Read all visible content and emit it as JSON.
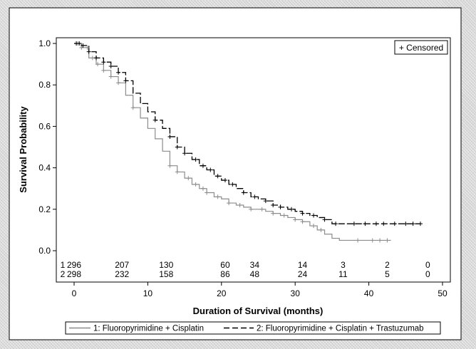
{
  "colors": {
    "panel_background": "#ffffff",
    "series1": "#8c8c8c",
    "series2": "#000000",
    "frame": "#000000"
  },
  "chart_data": {
    "type": "line",
    "subtype": "kaplan-meier survival curve with censoring marks",
    "title": "",
    "xlabel": "Duration of Survival (months)",
    "ylabel": "Survival Probability",
    "xlim": [
      -2,
      50
    ],
    "ylim": [
      0.0,
      1.0
    ],
    "x_ticks": [
      0,
      10,
      20,
      30,
      40,
      50
    ],
    "y_ticks": [
      0.0,
      0.2,
      0.4,
      0.6,
      0.8,
      1.0
    ],
    "x_tick_labels": [
      "0",
      "10",
      "20",
      "30",
      "40",
      "50"
    ],
    "y_tick_labels": [
      "0.0",
      "0.2",
      "0.4",
      "0.6",
      "0.8",
      "1.0"
    ],
    "grid": false,
    "censor_legend": "+ Censored",
    "censor_legend_position": "top-right",
    "legend_position": "bottom",
    "series": [
      {
        "name": "1: Fluoropyrimidine + Cisplatin",
        "style": "solid gray",
        "x": [
          0,
          1,
          2,
          3,
          4,
          5,
          6,
          7,
          8,
          9,
          10,
          11,
          12,
          13,
          14,
          15,
          16,
          17,
          18,
          19,
          20,
          21,
          22,
          23,
          24,
          25,
          26,
          27,
          28,
          29,
          30,
          31,
          32,
          33,
          34,
          35,
          36,
          37,
          38,
          39,
          40,
          41,
          42,
          43
        ],
        "y": [
          1.0,
          0.98,
          0.93,
          0.9,
          0.87,
          0.84,
          0.81,
          0.75,
          0.69,
          0.64,
          0.59,
          0.54,
          0.48,
          0.41,
          0.38,
          0.35,
          0.32,
          0.3,
          0.28,
          0.26,
          0.25,
          0.23,
          0.22,
          0.21,
          0.2,
          0.2,
          0.19,
          0.18,
          0.17,
          0.16,
          0.15,
          0.14,
          0.12,
          0.1,
          0.08,
          0.06,
          0.05,
          0.05,
          0.05,
          0.05,
          0.05,
          0.05,
          0.05,
          0.05
        ],
        "censor_x": [
          0.5,
          1.0,
          1.8,
          2.5,
          3.2,
          4.0,
          5.0,
          6.0,
          8.0,
          13.0,
          14.0,
          15.5,
          16.5,
          17.5,
          18.0,
          19.5,
          21.0,
          22.5,
          24.0,
          25.5,
          27.0,
          28.5,
          30.0,
          31.0,
          32.5,
          33.5,
          38.5,
          40.5,
          41.5,
          42.5
        ]
      },
      {
        "name": "2: Fluoropyrimidine + Cisplatin + Trastuzumab",
        "style": "long-dash black",
        "x": [
          0,
          1,
          2,
          3,
          4,
          5,
          6,
          7,
          8,
          9,
          10,
          11,
          12,
          13,
          14,
          15,
          16,
          17,
          18,
          19,
          20,
          21,
          22,
          23,
          24,
          25,
          26,
          27,
          28,
          29,
          30,
          31,
          32,
          33,
          34,
          35,
          36,
          37,
          38,
          39,
          40,
          41,
          42,
          43,
          44,
          45,
          46,
          47
        ],
        "y": [
          1.0,
          0.99,
          0.96,
          0.93,
          0.91,
          0.89,
          0.86,
          0.82,
          0.76,
          0.71,
          0.67,
          0.63,
          0.59,
          0.55,
          0.5,
          0.47,
          0.44,
          0.41,
          0.39,
          0.36,
          0.34,
          0.32,
          0.3,
          0.28,
          0.26,
          0.25,
          0.24,
          0.22,
          0.21,
          0.2,
          0.19,
          0.18,
          0.17,
          0.16,
          0.15,
          0.13,
          0.13,
          0.13,
          0.13,
          0.13,
          0.13,
          0.13,
          0.13,
          0.13,
          0.13,
          0.13,
          0.13,
          0.13
        ],
        "censor_x": [
          0.3,
          0.7,
          1.2,
          2.0,
          3.0,
          4.0,
          5.0,
          6.0,
          7.0,
          11.0,
          13.0,
          14.0,
          15.0,
          16.5,
          17.5,
          18.5,
          19.5,
          20.5,
          21.5,
          23.0,
          24.5,
          26.0,
          27.0,
          28.0,
          29.5,
          31.0,
          32.5,
          34.0,
          35.5,
          38.0,
          39.5,
          41.0,
          42.0,
          43.5,
          45.0,
          46.0,
          47.0
        ]
      }
    ],
    "number_at_risk": {
      "times": [
        0,
        6.5,
        12.5,
        20.5,
        24.5,
        31,
        36.5,
        42.5,
        48
      ],
      "rows": [
        {
          "label": "1",
          "values": [
            "296",
            "207",
            "130",
            "60",
            "34",
            "14",
            "3",
            "2",
            "0"
          ]
        },
        {
          "label": "2",
          "values": [
            "298",
            "232",
            "158",
            "86",
            "48",
            "24",
            "11",
            "5",
            "0"
          ]
        }
      ]
    }
  }
}
